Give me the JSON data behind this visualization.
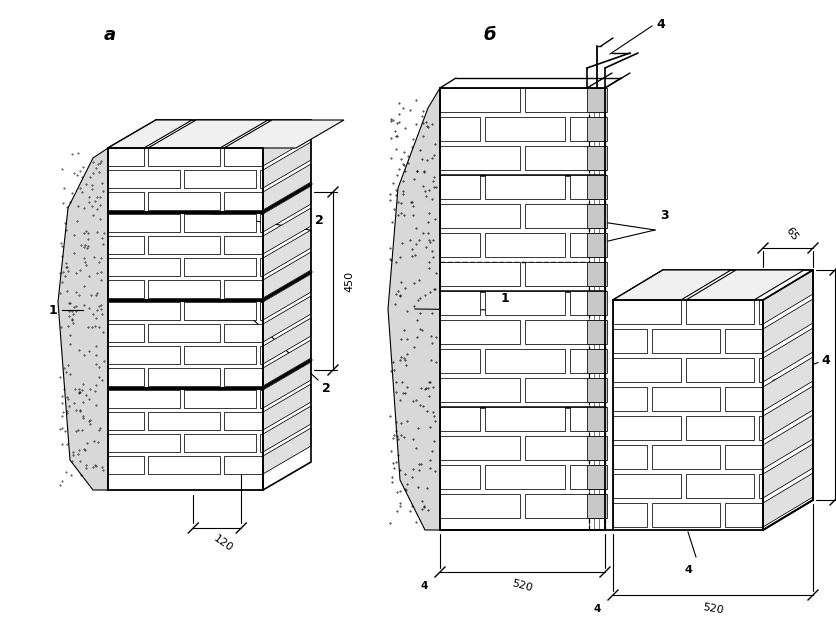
{
  "bg_color": "#ffffff",
  "lc": "#000000",
  "label_a": "а",
  "label_b": "б",
  "dim_120": "120",
  "dim_450": "450",
  "dim_520a": "520",
  "dim_520b": "520",
  "dim_65": "65",
  "label_1a": "1",
  "label_2a_top": "2",
  "label_2a_bot": "2",
  "label_1b": "1",
  "label_3": "3",
  "label_4top": "4",
  "label_4mid": "4",
  "label_4bot": "4",
  "dim_520_right": "520",
  "dim_4_left": "4",
  "dim_4_right": "4"
}
